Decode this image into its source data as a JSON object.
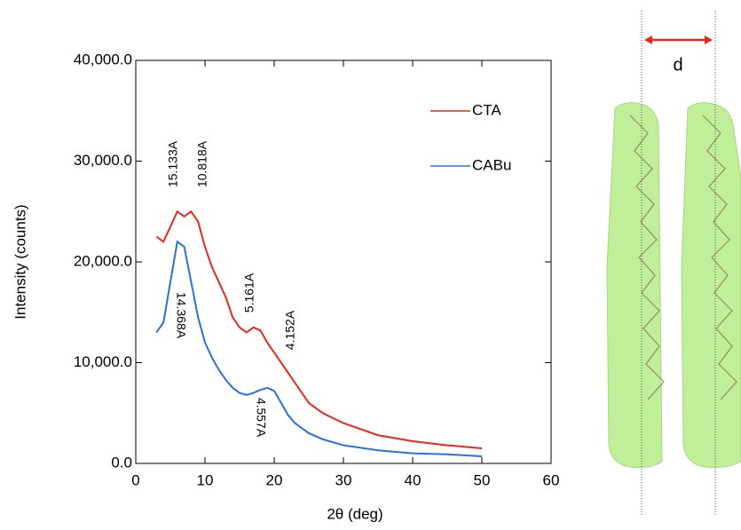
{
  "chart_data": {
    "type": "line",
    "xlabel": "2θ (deg)",
    "ylabel": "Intensity (counts)",
    "x": [
      3,
      4,
      5,
      6,
      7,
      8,
      9,
      10,
      11,
      12,
      13,
      14,
      15,
      16,
      17,
      18,
      19,
      20,
      21,
      22,
      23,
      24,
      25,
      27,
      30,
      35,
      40,
      45,
      50
    ],
    "series": [
      {
        "name": "CTA",
        "color": "#e8281e",
        "values": [
          22500,
          22000,
          23500,
          25000,
          24500,
          25000,
          24000,
          21500,
          19500,
          18000,
          16500,
          14500,
          13500,
          13000,
          13500,
          13200,
          12000,
          11000,
          10000,
          9000,
          8000,
          7000,
          6000,
          5000,
          4000,
          2800,
          2200,
          1800,
          1500
        ]
      },
      {
        "name": "CABu",
        "color": "#2a6fe0",
        "values": [
          13000,
          14000,
          18000,
          22000,
          21500,
          18000,
          14500,
          12000,
          10500,
          9300,
          8300,
          7500,
          7000,
          6800,
          7000,
          7300,
          7500,
          7200,
          6000,
          4800,
          4000,
          3500,
          3000,
          2400,
          1800,
          1300,
          1000,
          900,
          700
        ]
      }
    ],
    "xlim": [
      0,
      60
    ],
    "xticks": [
      0,
      10,
      20,
      30,
      40,
      50,
      60
    ],
    "ylim": [
      0,
      40000
    ],
    "yticks": [
      {
        "value": 0,
        "label": "0.0"
      },
      {
        "value": 10000,
        "label": "10,000.0"
      },
      {
        "value": 20000,
        "label": "20,000.0"
      },
      {
        "value": 30000,
        "label": "30,000.0"
      },
      {
        "value": 40000,
        "label": "40,000.0"
      }
    ],
    "annotations": [
      {
        "text": "15.133A",
        "color": "#e8281e"
      },
      {
        "text": "10.818A",
        "color": "#e8281e"
      },
      {
        "text": "5.161A",
        "color": "#e8281e"
      },
      {
        "text": "4.152A",
        "color": "#e8281e"
      },
      {
        "text": "14.368A",
        "color": "#2a6fe0"
      },
      {
        "text": "4.557A",
        "color": "#2a6fe0"
      }
    ],
    "inset_label": "d"
  }
}
